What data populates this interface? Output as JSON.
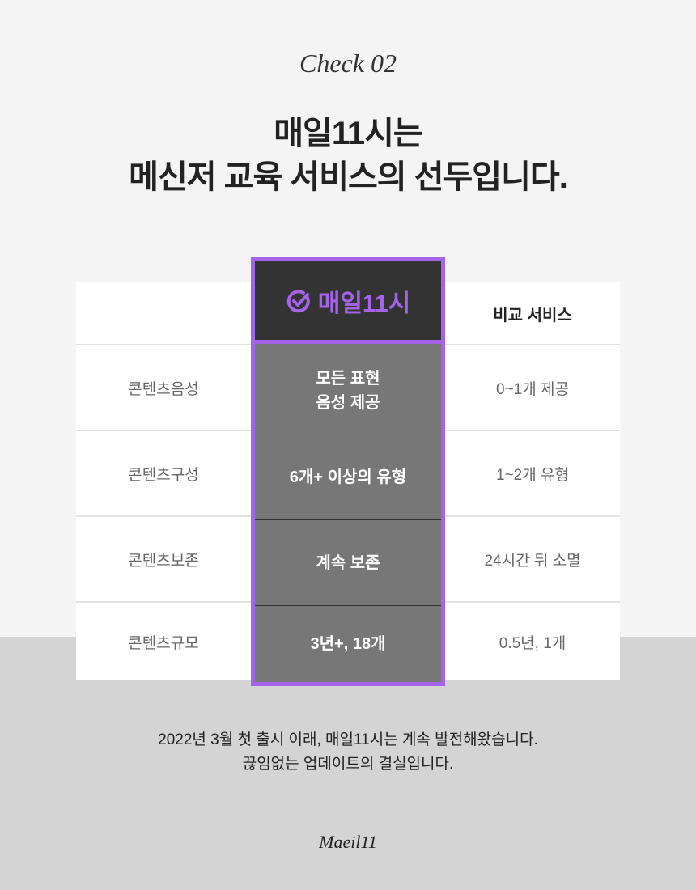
{
  "header": {
    "check": "Check 02",
    "title_line1": "매일11시는",
    "title_line2": "메신저 교육 서비스의 선두입니다."
  },
  "table": {
    "highlight_header": "매일11시",
    "compare_header": "비교 서비스",
    "rows": [
      {
        "label": "콘텐츠음성",
        "ours": "모든 표현\n음성 제공",
        "compare": "0~1개 제공"
      },
      {
        "label": "콘텐츠구성",
        "ours": "6개+ 이상의 유형",
        "compare": "1~2개 유형"
      },
      {
        "label": "콘텐츠보존",
        "ours": "계속 보존",
        "compare": "24시간 뒤 소멸"
      },
      {
        "label": "콘텐츠규모",
        "ours": "3년+, 18개",
        "compare": "0.5년, 1개"
      }
    ]
  },
  "footer": {
    "line1": "2022년 3월 첫 출시 이래, 매일11시는 계속 발전해왔습니다.",
    "line2": "끊임없는 업데이트의 결실입니다.",
    "brand": "Maeil11"
  },
  "colors": {
    "accent": "#a463e8",
    "dark": "#333333",
    "highlight_cell": "#777777"
  },
  "icons": {
    "brand": "check-circle-icon"
  }
}
